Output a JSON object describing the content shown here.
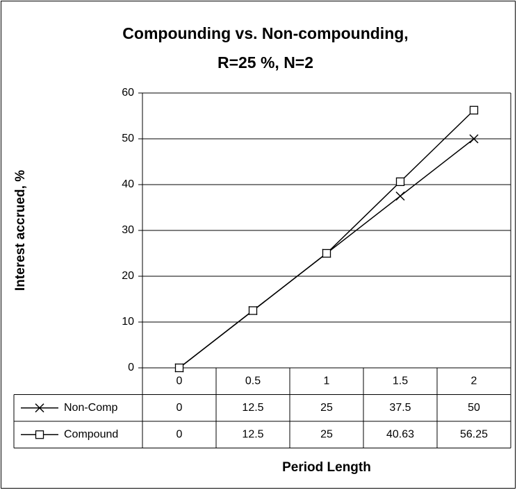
{
  "chart_data": {
    "type": "line",
    "title": [
      "Compounding vs. Non-compounding,",
      "R=25 %, N=2"
    ],
    "y_label": "Interest accrued, %",
    "x_label": "Period Length",
    "categories": [
      "0",
      "0.5",
      "1",
      "1.5",
      "2"
    ],
    "series": [
      {
        "name": "Non-Comp",
        "color": "#000000",
        "marker": "x",
        "values": [
          0,
          12.5,
          25,
          37.5,
          50
        ]
      },
      {
        "name": "Compound",
        "color": "#000000",
        "marker": "square",
        "values": [
          0,
          12.5,
          25,
          40.63,
          56.25
        ]
      }
    ],
    "ylim": [
      0,
      60
    ],
    "yticks": [
      0,
      10,
      20,
      30,
      40,
      50,
      60
    ],
    "grid": true,
    "data_table": true
  }
}
